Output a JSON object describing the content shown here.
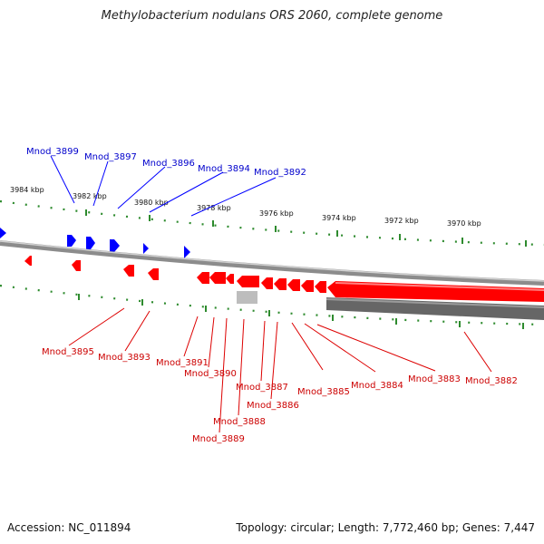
{
  "title": "Methylobacterium nodulans ORS 2060, complete genome",
  "accession": "Accession: NC_011894",
  "summary": "Topology: circular; Length: 7,772,460 bp; Genes: 7,447",
  "colors": {
    "forward_gene": "#0000ff",
    "reverse_gene": "#ff0000",
    "tick": "#2e8b2e",
    "backbone": "#8c8c8c",
    "rna_feature": "#666666",
    "pseudo_feature": "#bdbdbd"
  },
  "kbp_labels": [
    "3984 kbp",
    "3982 kbp",
    "3980 kbp",
    "3978 kbp",
    "3976 kbp",
    "3974 kbp",
    "3972 kbp",
    "3970 kbp"
  ],
  "forward_genes": [
    "Mnod_3899",
    "Mnod_3897",
    "Mnod_3896",
    "Mnod_3894",
    "Mnod_3892"
  ],
  "reverse_genes": [
    "Mnod_3895",
    "Mnod_3893",
    "Mnod_3891",
    "Mnod_3890",
    "Mnod_3889",
    "Mnod_3888",
    "Mnod_3887",
    "Mnod_3886",
    "Mnod_3885",
    "Mnod_3884",
    "Mnod_3883",
    "Mnod_3882"
  ]
}
